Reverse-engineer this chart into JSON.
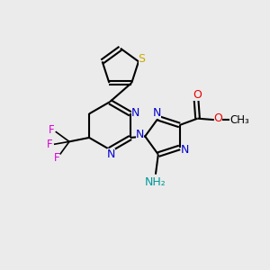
{
  "bg_color": "#ebebeb",
  "bond_color": "#000000",
  "N_color": "#0000cc",
  "S_color": "#ccaa00",
  "O_color": "#ee0000",
  "F_color": "#dd00dd",
  "NH2_color": "#009999",
  "figsize": [
    3.0,
    3.0
  ],
  "dpi": 100,
  "xlim": [
    0,
    10
  ],
  "ylim": [
    0,
    10
  ]
}
